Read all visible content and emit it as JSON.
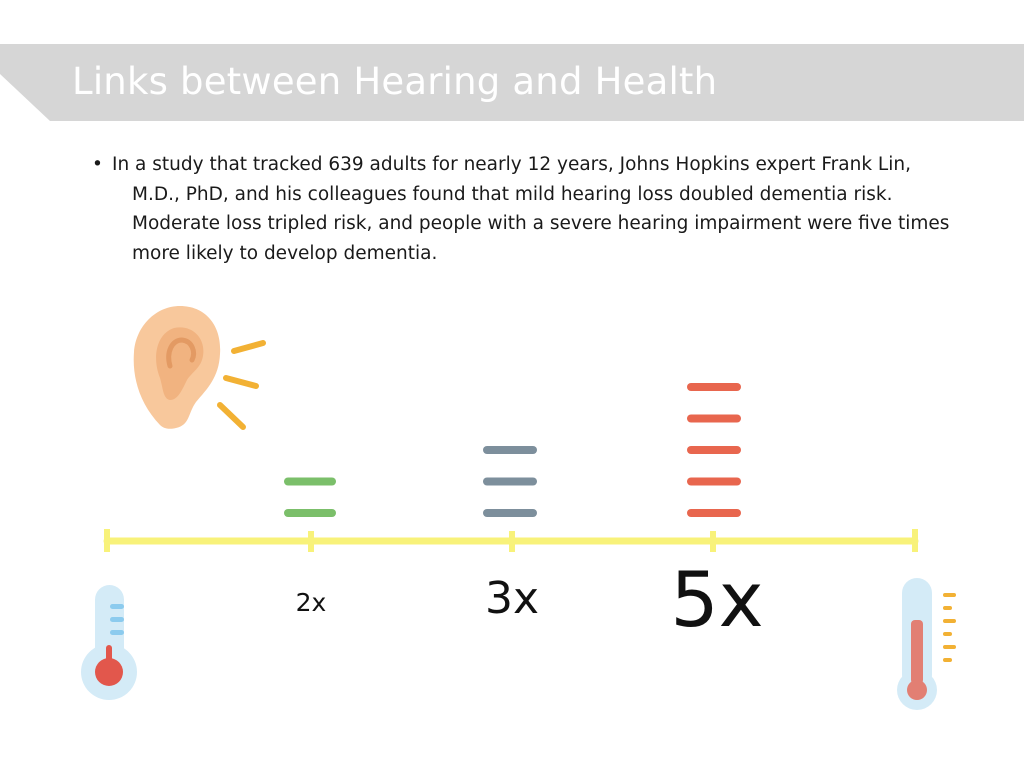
{
  "slide": {
    "title": "Links between Hearing and Health",
    "bullet": "•",
    "body_lines": [
      "In a study that tracked 639 adults for nearly 12 years, Johns Hopkins expert Frank Lin,",
      "M.D., PhD, and his colleagues found that mild hearing loss doubled dementia risk.",
      "Moderate loss tripled risk, and people with a severe hearing impairment were five times",
      "more likely to develop dementia."
    ]
  },
  "scale": {
    "markers": [
      {
        "label": "2x",
        "bars": 2,
        "color": "#7bbf6a"
      },
      {
        "label": "3x",
        "bars": 3,
        "color": "#7d8f9c"
      },
      {
        "label": "5x",
        "bars": 5,
        "color": "#e8664e"
      }
    ],
    "axis_color": "#f8f27a"
  },
  "icons": [
    "ear-icon",
    "thermometer-low-icon",
    "thermometer-high-icon"
  ],
  "colors": {
    "title_band": "#d6d6d6",
    "title_text": "#ffffff",
    "ear_skin": "#f8c89c",
    "sound_waves": "#f2b134"
  }
}
